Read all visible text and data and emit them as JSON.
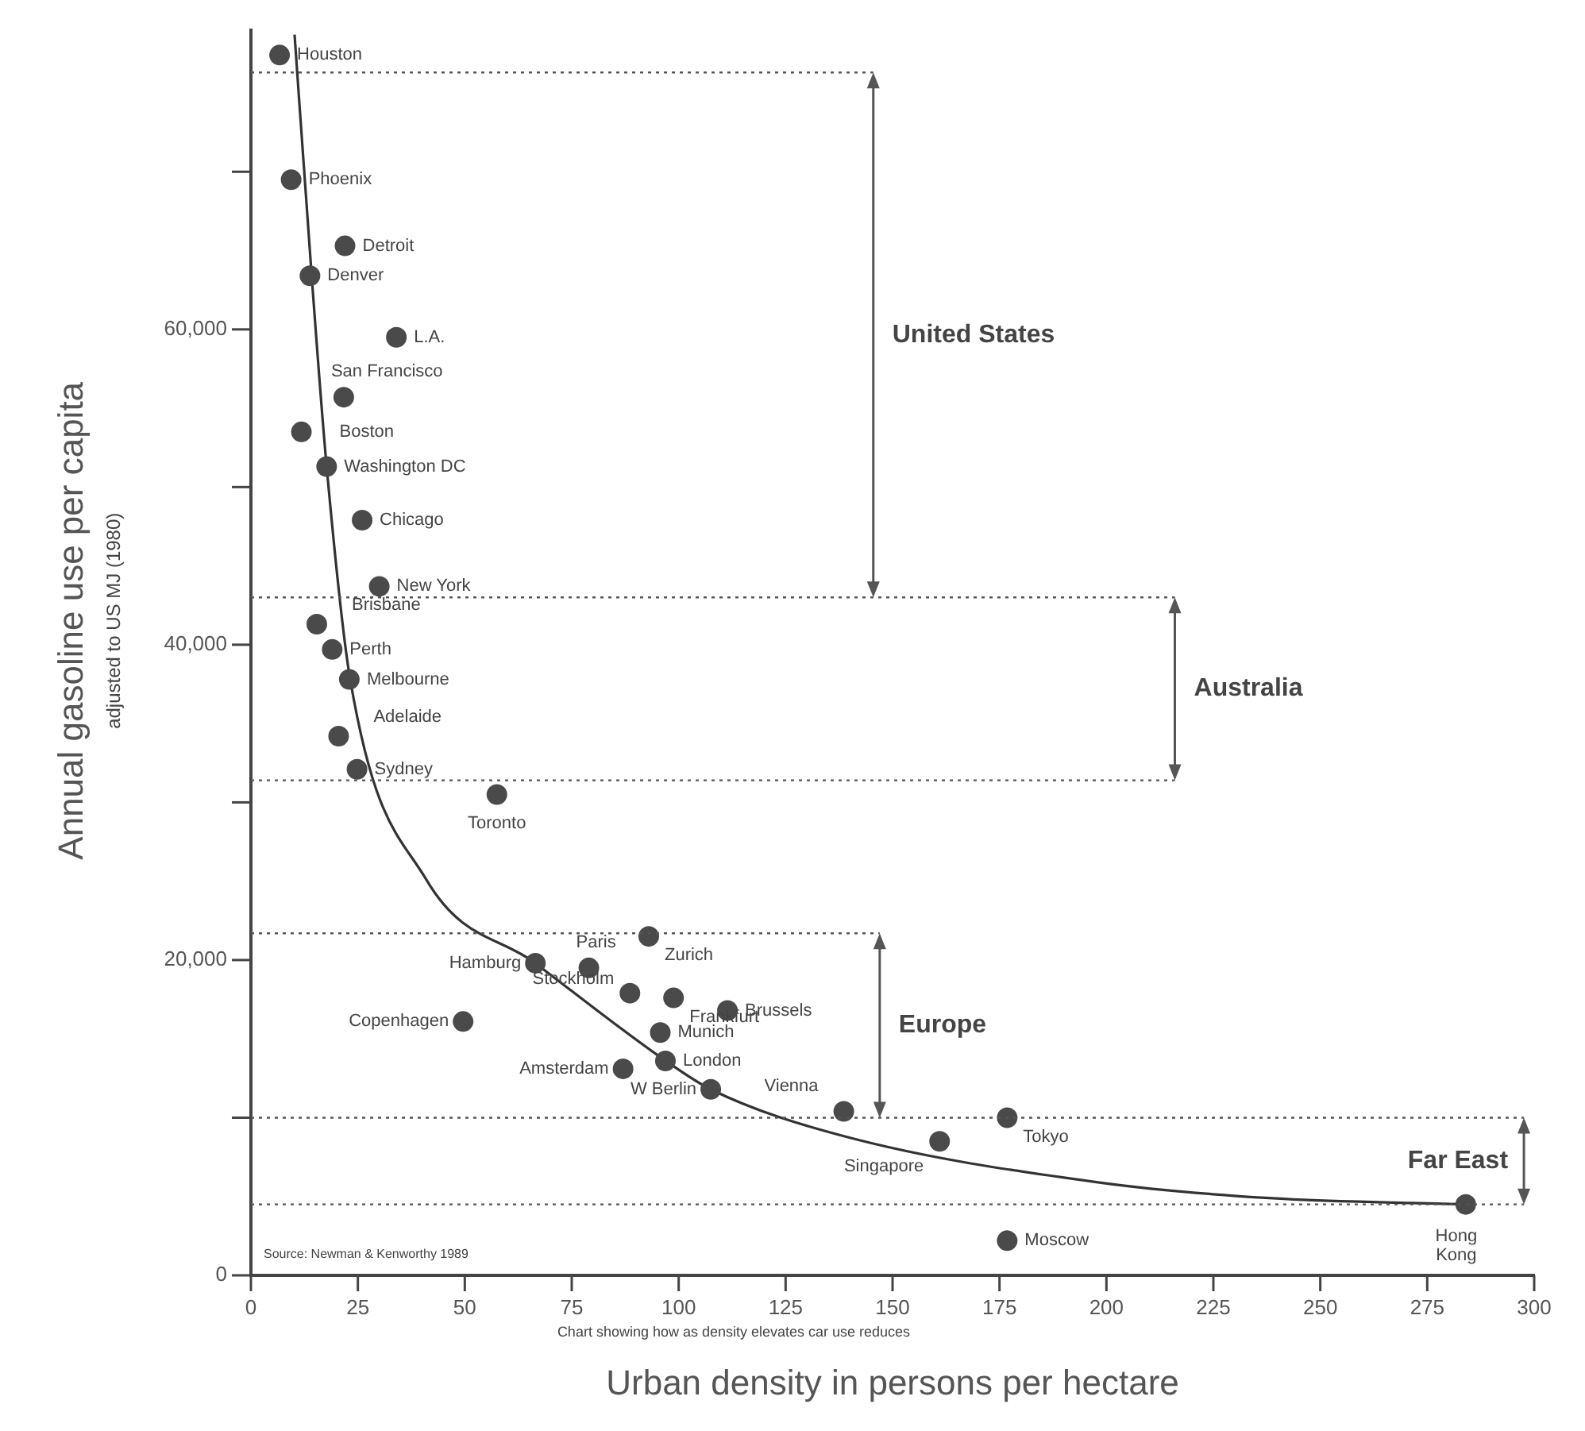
{
  "chart_data": {
    "type": "scatter",
    "xlabel": "Urban density in persons per hectare",
    "ylabel": "Annual gasoline use per capita",
    "xlim": [
      0,
      300
    ],
    "xticks": [
      0,
      25,
      50,
      75,
      100,
      125,
      150,
      175,
      200,
      225,
      250,
      275,
      300
    ],
    "ylim": [
      0,
      79000
    ],
    "yticks": [
      0,
      {
        "value": 10000,
        "label": null
      },
      {
        "value": 20000,
        "label": "20,000"
      },
      {
        "value": 30000,
        "label": null
      },
      {
        "value": 40000,
        "label": "40,000"
      },
      {
        "value": 50000,
        "label": null
      },
      {
        "value": 60000,
        "label": "60,000"
      },
      {
        "value": 70000,
        "label": null
      }
    ],
    "grid": false,
    "legend": false,
    "marker": "circle",
    "series": [
      {
        "type": "scatter",
        "color": "#4a4a4a",
        "x": [
          6.7,
          9.4,
          22,
          13.8,
          34,
          21.7,
          11.8,
          17.7,
          26,
          30,
          15.4,
          19,
          23,
          20.5,
          24.8,
          57.5,
          66.5,
          79,
          93,
          88.6,
          98.8,
          111.4,
          49.6,
          95.7,
          96.9,
          87,
          107.5,
          138.6,
          176.8,
          161,
          176.8,
          284
        ],
        "values": [
          77400,
          69500,
          65300,
          63400,
          59500,
          55700,
          53500,
          51300,
          47900,
          43700,
          41300,
          39700,
          37800,
          34200,
          32100,
          30500,
          19800,
          19500,
          21500,
          17900,
          17600,
          16800,
          16100,
          15400,
          13600,
          13100,
          11800,
          10400,
          10000,
          8500,
          2200,
          4500
        ]
      },
      {
        "type": "line",
        "color": "#333333",
        "marker": "none",
        "line_style": "solid",
        "x": [
          10.2,
          14.2,
          17.7,
          23.2,
          41,
          66.5,
          97,
          107.5,
          139,
          198,
          238,
          284
        ],
        "values": [
          78700,
          63400,
          51300,
          37800,
          25100,
          19800,
          13600,
          11800,
          8800,
          5900,
          4900,
          4500
        ]
      }
    ],
    "ref_lines": [
      {
        "axis": "y",
        "value": 76300,
        "color": "#555555",
        "line_style": "dotted"
      },
      {
        "axis": "y",
        "value": 43000,
        "color": "#555555",
        "line_style": "dotted"
      },
      {
        "axis": "y",
        "value": 31400,
        "color": "#555555",
        "line_style": "dotted"
      },
      {
        "axis": "y",
        "value": 21700,
        "color": "#555555",
        "line_style": "dotted"
      },
      {
        "axis": "y",
        "value": 10000,
        "color": "#555555",
        "line_style": "dotted"
      },
      {
        "axis": "y",
        "value": 4500,
        "color": "#555555",
        "line_style": "dotted"
      }
    ],
    "annotations": [
      "adjusted to US MJ (1980)",
      "Chart showing how as density elevates car use reduces",
      "Source: Newman & Kenworthy 1989",
      "United States",
      "Australia",
      "Europe",
      "Far East",
      {
        "text": "Houston",
        "x": 6.7,
        "y": 77400
      },
      {
        "text": "Phoenix",
        "x": 9.4,
        "y": 69500
      },
      {
        "text": "Detroit",
        "x": 22,
        "y": 65300
      },
      {
        "text": "Denver",
        "x": 13.8,
        "y": 63400
      },
      {
        "text": "L.A.",
        "x": 34,
        "y": 59500
      },
      {
        "text": "San Francisco",
        "x": 21.7,
        "y": 55700
      },
      {
        "text": "Boston",
        "x": 11.8,
        "y": 53500
      },
      {
        "text": "Washington DC",
        "x": 17.7,
        "y": 51300
      },
      {
        "text": "Chicago",
        "x": 26,
        "y": 47900
      },
      {
        "text": "New York",
        "x": 30,
        "y": 43700
      },
      {
        "text": "Brisbane",
        "x": 15.4,
        "y": 41300
      },
      {
        "text": "Perth",
        "x": 19,
        "y": 39700
      },
      {
        "text": "Melbourne",
        "x": 23,
        "y": 37800
      },
      {
        "text": "Adelaide",
        "x": 20.5,
        "y": 34200
      },
      {
        "text": "Sydney",
        "x": 24.8,
        "y": 32100
      },
      {
        "text": "Toronto",
        "x": 57.5,
        "y": 30500
      },
      {
        "text": "Hamburg",
        "x": 66.5,
        "y": 19800
      },
      {
        "text": "Paris",
        "x": 79,
        "y": 19500
      },
      {
        "text": "Zurich",
        "x": 93,
        "y": 21500
      },
      {
        "text": "Stockholm",
        "x": 88.6,
        "y": 17900
      },
      {
        "text": "Frankfurt",
        "x": 98.8,
        "y": 17600
      },
      {
        "text": "Brussels",
        "x": 111.4,
        "y": 16800
      },
      {
        "text": "Copenhagen",
        "x": 49.6,
        "y": 16100
      },
      {
        "text": "Munich",
        "x": 95.7,
        "y": 15400
      },
      {
        "text": "London",
        "x": 96.9,
        "y": 13600
      },
      {
        "text": "Amsterdam",
        "x": 87,
        "y": 13100
      },
      {
        "text": "W Berlin",
        "x": 107.5,
        "y": 11800
      },
      {
        "text": "Vienna",
        "x": 138.6,
        "y": 10400
      },
      {
        "text": "Tokyo",
        "x": 176.8,
        "y": 10000
      },
      {
        "text": "Singapore",
        "x": 161,
        "y": 8500
      },
      {
        "text": "Moscow",
        "x": 176.8,
        "y": 2200
      },
      {
        "text": "Hong Kong",
        "x": 284,
        "y": 4500
      }
    ]
  }
}
